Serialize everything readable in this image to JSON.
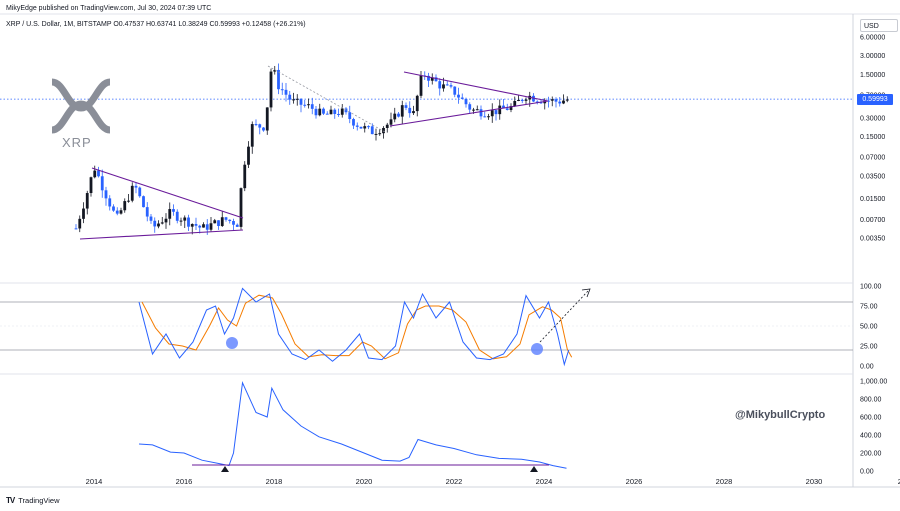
{
  "header": {
    "publisher_line": "MikyEdge published on TradingView.com, Jul 30, 2024 07:39 UTC",
    "ohlc_line": "XRP / U.S. Dollar, 1M, BITSTAMP  O0.47537  H0.63741  L0.38249  C0.59993  +0.12458 (+26.21%)"
  },
  "currency_label": "USD",
  "last_price": "0.59993",
  "watermark": "@MikybullCrypto",
  "logo_text": "XRP",
  "footer_brand": "TradingView",
  "colors": {
    "bull": "#131722",
    "bear": "#2962ff",
    "stoch_k": "#2962ff",
    "stoch_d": "#f57c00",
    "trendline": "#6a1b9a",
    "indicator_line": "#2962ff",
    "price_line": "#2962ff"
  },
  "chart_data": [
    {
      "type": "candlestick",
      "title": "XRP / U.S. Dollar, 1M, BITSTAMP",
      "y_scale": "log",
      "y_ticks": [
        "6.00000",
        "3.00000",
        "1.50000",
        "0.70000",
        "0.30000",
        "0.15000",
        "0.07000",
        "0.03500",
        "0.01500",
        "0.00700",
        "0.00350"
      ],
      "x_ticks": [
        "2014",
        "2016",
        "2018",
        "2020",
        "2022",
        "2024",
        "2026",
        "2028",
        "2030",
        "203"
      ],
      "last_price": 0.59993
    },
    {
      "type": "line",
      "name": "stochastic oscillator",
      "y_ticks": [
        "100.00",
        "75.00",
        "50.00",
        "25.00",
        "0.00"
      ],
      "levels": [
        80,
        20
      ]
    },
    {
      "type": "line",
      "name": "lower indicator",
      "y_ticks": [
        "1,000.00",
        "800.00",
        "600.00",
        "400.00",
        "200.00",
        "0.00"
      ]
    }
  ]
}
